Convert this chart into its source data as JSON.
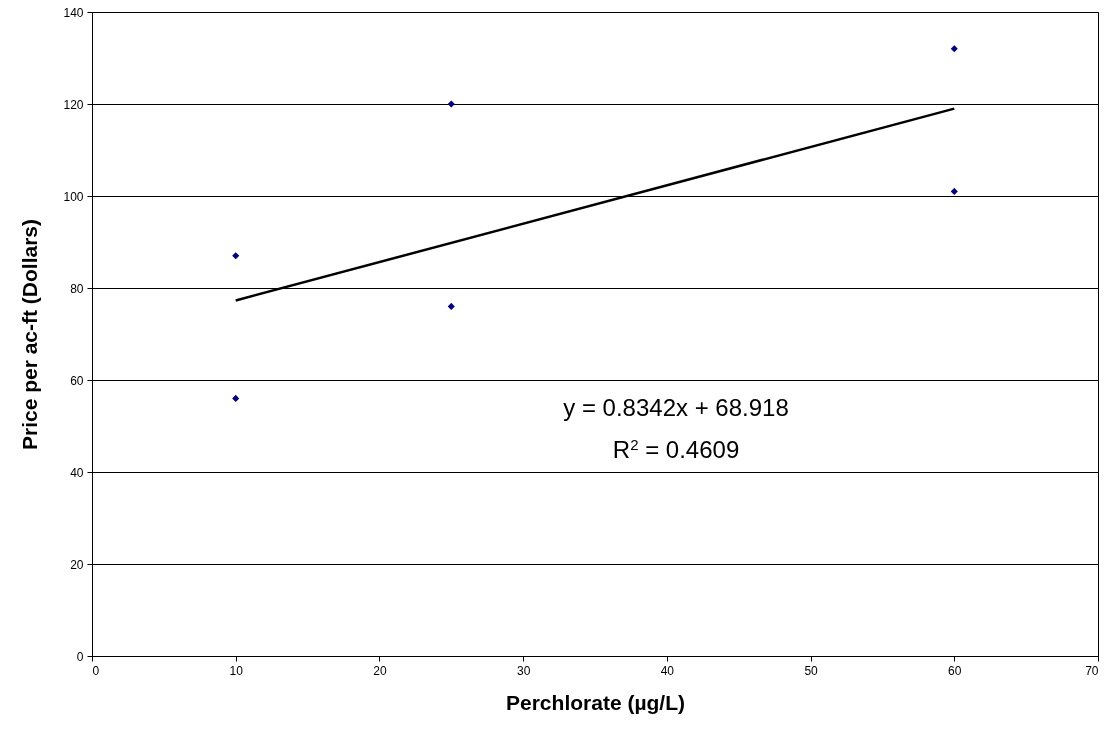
{
  "chart_data": {
    "type": "scatter",
    "xlabel": "Perchlorate (µg/L)",
    "ylabel": "Price per ac-ft (Dollars)",
    "xlim": [
      0,
      70
    ],
    "xticks": [
      0,
      10,
      20,
      30,
      40,
      50,
      60,
      70
    ],
    "ylim": [
      0,
      140
    ],
    "yticks": [
      0,
      20,
      40,
      60,
      80,
      100,
      120,
      140
    ],
    "grid": "y",
    "series": [
      {
        "color": "#000080",
        "marker": "diamond",
        "x": [
          10,
          10,
          25,
          25,
          60,
          60
        ],
        "values": [
          87,
          56,
          120,
          76,
          132,
          101
        ]
      },
      {
        "type": "line",
        "color": "#000000",
        "x": [
          10,
          60
        ],
        "values": [
          77.3,
          119
        ]
      }
    ],
    "annotations": [
      "y = 0.8342x + 68.918",
      "R$^{2}$ = 0.4609"
    ]
  }
}
